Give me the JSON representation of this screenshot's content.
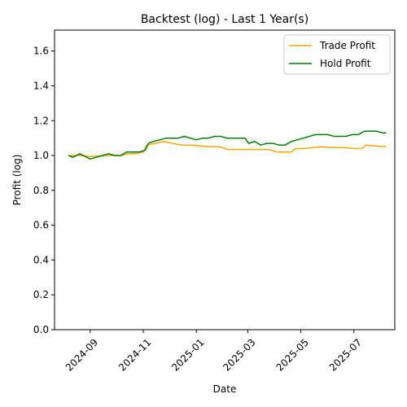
{
  "chart_data": {
    "type": "line",
    "title": "Backtest (log) - Last 1 Year(s)",
    "xlabel": "Date",
    "ylabel": "Profit (log)",
    "xlim": [
      "2024-07-22",
      "2025-08-17"
    ],
    "ylim": [
      0,
      1.72
    ],
    "yticks": [
      0.0,
      0.2,
      0.4,
      0.6,
      0.8,
      1.0,
      1.2,
      1.4,
      1.6
    ],
    "ytick_labels": [
      "0.0",
      "0.2",
      "0.4",
      "0.6",
      "0.8",
      "1.0",
      "1.2",
      "1.4",
      "1.6"
    ],
    "xticks": [
      "2024-09-01",
      "2024-11-01",
      "2025-01-01",
      "2025-03-01",
      "2025-05-01",
      "2025-07-01"
    ],
    "xtick_labels": [
      "2024-09",
      "2024-11",
      "2025-01",
      "2025-03",
      "2025-05",
      "2025-07"
    ],
    "grid": false,
    "legend_position": "top-right",
    "series": [
      {
        "name": "Trade Profit",
        "color": "#ffa500",
        "points": [
          [
            "2024-08-07",
            1.0
          ],
          [
            "2024-08-20",
            1.0
          ],
          [
            "2024-09-01",
            0.995
          ],
          [
            "2024-09-15",
            0.998
          ],
          [
            "2024-09-25",
            1.0
          ],
          [
            "2024-10-05",
            0.998
          ],
          [
            "2024-10-15",
            1.01
          ],
          [
            "2024-10-25",
            1.012
          ],
          [
            "2024-11-01",
            1.02
          ],
          [
            "2024-11-05",
            1.06
          ],
          [
            "2024-11-15",
            1.07
          ],
          [
            "2024-11-25",
            1.08
          ],
          [
            "2024-12-05",
            1.07
          ],
          [
            "2024-12-15",
            1.06
          ],
          [
            "2024-12-25",
            1.06
          ],
          [
            "2025-01-05",
            1.055
          ],
          [
            "2025-01-15",
            1.05
          ],
          [
            "2025-01-25",
            1.05
          ],
          [
            "2025-02-01",
            1.045
          ],
          [
            "2025-02-05",
            1.035
          ],
          [
            "2025-02-20",
            1.035
          ],
          [
            "2025-03-10",
            1.035
          ],
          [
            "2025-03-25",
            1.035
          ],
          [
            "2025-04-05",
            1.02
          ],
          [
            "2025-04-20",
            1.02
          ],
          [
            "2025-04-25",
            1.04
          ],
          [
            "2025-05-05",
            1.04
          ],
          [
            "2025-05-15",
            1.045
          ],
          [
            "2025-05-25",
            1.05
          ],
          [
            "2025-06-05",
            1.045
          ],
          [
            "2025-06-20",
            1.045
          ],
          [
            "2025-07-01",
            1.04
          ],
          [
            "2025-07-10",
            1.04
          ],
          [
            "2025-07-15",
            1.06
          ],
          [
            "2025-07-25",
            1.055
          ],
          [
            "2025-08-07",
            1.05
          ]
        ]
      },
      {
        "name": "Hold Profit",
        "color": "#008000",
        "points": [
          [
            "2024-08-07",
            1.0
          ],
          [
            "2024-08-12",
            0.99
          ],
          [
            "2024-08-20",
            1.01
          ],
          [
            "2024-08-28",
            0.99
          ],
          [
            "2024-09-01",
            0.98
          ],
          [
            "2024-09-08",
            0.99
          ],
          [
            "2024-09-15",
            1.0
          ],
          [
            "2024-09-22",
            1.01
          ],
          [
            "2024-09-29",
            1.0
          ],
          [
            "2024-10-06",
            1.0
          ],
          [
            "2024-10-13",
            1.02
          ],
          [
            "2024-10-20",
            1.02
          ],
          [
            "2024-10-27",
            1.02
          ],
          [
            "2024-11-03",
            1.03
          ],
          [
            "2024-11-07",
            1.07
          ],
          [
            "2024-11-12",
            1.08
          ],
          [
            "2024-11-20",
            1.09
          ],
          [
            "2024-11-27",
            1.1
          ],
          [
            "2024-12-04",
            1.1
          ],
          [
            "2024-12-11",
            1.1
          ],
          [
            "2024-12-18",
            1.11
          ],
          [
            "2024-12-25",
            1.1
          ],
          [
            "2025-01-01",
            1.09
          ],
          [
            "2025-01-08",
            1.1
          ],
          [
            "2025-01-15",
            1.1
          ],
          [
            "2025-01-22",
            1.11
          ],
          [
            "2025-01-29",
            1.11
          ],
          [
            "2025-02-05",
            1.1
          ],
          [
            "2025-02-12",
            1.1
          ],
          [
            "2025-02-19",
            1.1
          ],
          [
            "2025-02-26",
            1.1
          ],
          [
            "2025-03-02",
            1.07
          ],
          [
            "2025-03-09",
            1.08
          ],
          [
            "2025-03-16",
            1.06
          ],
          [
            "2025-03-23",
            1.07
          ],
          [
            "2025-03-30",
            1.07
          ],
          [
            "2025-04-06",
            1.06
          ],
          [
            "2025-04-13",
            1.06
          ],
          [
            "2025-04-20",
            1.08
          ],
          [
            "2025-04-27",
            1.09
          ],
          [
            "2025-05-04",
            1.1
          ],
          [
            "2025-05-11",
            1.11
          ],
          [
            "2025-05-18",
            1.12
          ],
          [
            "2025-05-25",
            1.12
          ],
          [
            "2025-06-01",
            1.12
          ],
          [
            "2025-06-08",
            1.11
          ],
          [
            "2025-06-15",
            1.11
          ],
          [
            "2025-06-22",
            1.11
          ],
          [
            "2025-06-29",
            1.12
          ],
          [
            "2025-07-06",
            1.12
          ],
          [
            "2025-07-13",
            1.14
          ],
          [
            "2025-07-20",
            1.14
          ],
          [
            "2025-07-27",
            1.14
          ],
          [
            "2025-08-03",
            1.13
          ],
          [
            "2025-08-07",
            1.13
          ]
        ]
      }
    ]
  }
}
